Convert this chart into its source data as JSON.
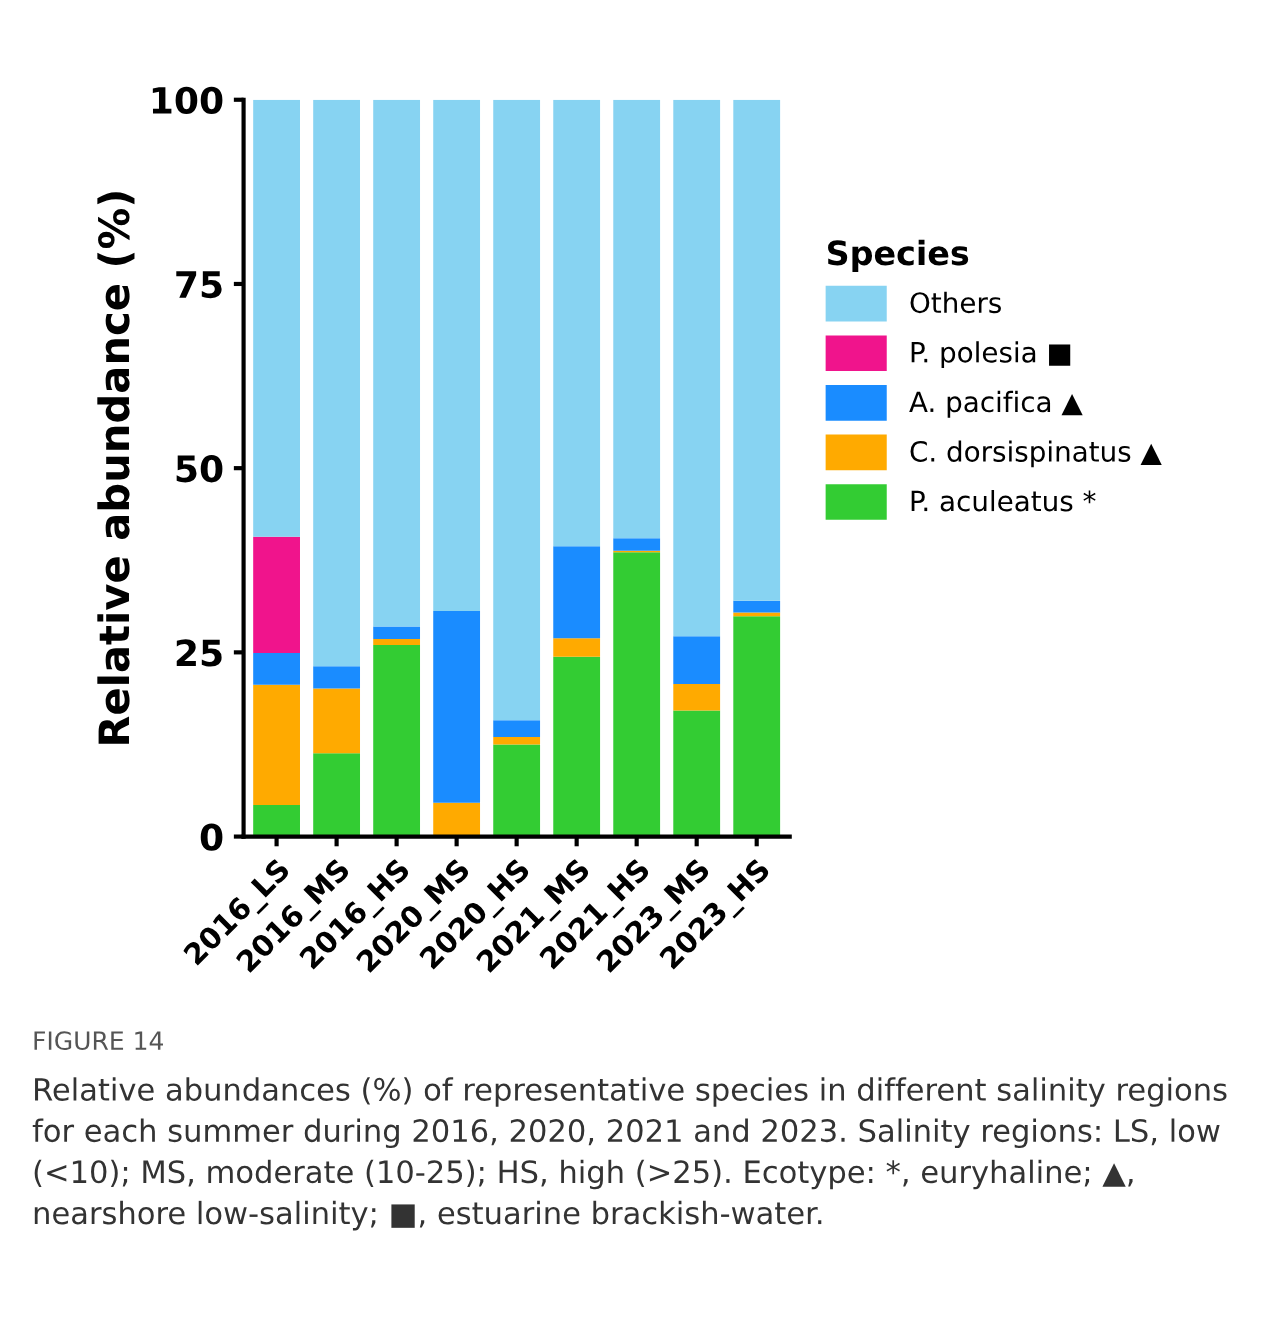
{
  "chart_data": {
    "type": "bar",
    "stacked": true,
    "ylabel": "Relative abundance (%)",
    "legend_title": "Species",
    "legend": "right",
    "categories": [
      "2016_LS",
      "2016_MS",
      "2016_HS",
      "2020_MS",
      "2020_HS",
      "2021_MS",
      "2021_HS",
      "2023_MS",
      "2023_HS"
    ],
    "series": [
      {
        "name": "P. aculeatus *",
        "color": "#33cc33",
        "values": [
          4.3,
          11.3,
          26.0,
          0,
          12.5,
          24.4,
          38.6,
          17.1,
          29.9
        ]
      },
      {
        "name": "C. dorsispinatus ▲",
        "color": "#ffaa00",
        "values": [
          16.3,
          8.8,
          0.8,
          4.6,
          1.0,
          2.5,
          0.2,
          3.6,
          0.5
        ]
      },
      {
        "name": "A. pacifica ▲",
        "color": "#1a8cff",
        "values": [
          4.3,
          3.0,
          1.7,
          26.0,
          2.3,
          12.5,
          1.7,
          6.5,
          1.6
        ]
      },
      {
        "name": "P. polesia ■",
        "color": "#f0148c",
        "values": [
          15.8,
          0,
          0,
          0,
          0,
          0,
          0,
          0,
          0
        ]
      },
      {
        "name": "Others",
        "color": "#87d3f2",
        "values": [
          59.3,
          76.9,
          71.5,
          69.4,
          84.2,
          60.6,
          59.5,
          72.8,
          68.0
        ]
      }
    ],
    "ylim": [
      0,
      100
    ],
    "yticks": [
      0,
      25,
      50,
      75,
      100
    ],
    "grid": false,
    "annotations": [
      "FIGURE 14",
      "Relative abundances (%) of representative species in different salinity regions for each summer during 2016, 2020, 2021 and 2023. Salinity regions: LS, low (<10); MS, moderate (10-25); HS, high (>25). Ecotype: *, euryhaline; ▲, nearshore low-salinity; ■, estuarine brackish-water."
    ]
  }
}
